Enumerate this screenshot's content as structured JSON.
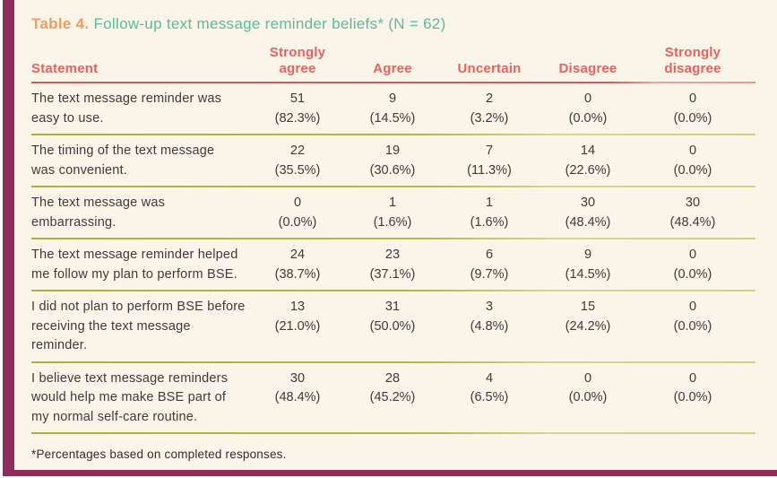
{
  "colors": {
    "accent_bar": "#8d2e5c",
    "panel_background": "#faf4e9",
    "title_label": "#f09e5e",
    "title_text": "#57bd9d",
    "header_text": "#e8615c",
    "header_rule": "#e0564e",
    "row_rule": "#a9b23a",
    "body_text": "#3c3c3c"
  },
  "table": {
    "title_label": "Table 4.",
    "title_text": "Follow-up text message reminder beliefs* (N = 62)",
    "columns": {
      "statement": "Statement",
      "strongly_agree": "Strongly\nagree",
      "agree": "Agree",
      "uncertain": "Uncertain",
      "disagree": "Disagree",
      "strongly_disagree": "Strongly\ndisagree"
    },
    "rows": [
      {
        "statement": "The text message reminder was\neasy to use.",
        "cells": [
          {
            "n": "51",
            "pct": "(82.3%)"
          },
          {
            "n": "9",
            "pct": "(14.5%)"
          },
          {
            "n": "2",
            "pct": "(3.2%)"
          },
          {
            "n": "0",
            "pct": "(0.0%)"
          },
          {
            "n": "0",
            "pct": "(0.0%)"
          }
        ]
      },
      {
        "statement": "The timing of the text message\nwas convenient.",
        "cells": [
          {
            "n": "22",
            "pct": "(35.5%)"
          },
          {
            "n": "19",
            "pct": "(30.6%)"
          },
          {
            "n": "7",
            "pct": "(11.3%)"
          },
          {
            "n": "14",
            "pct": "(22.6%)"
          },
          {
            "n": "0",
            "pct": "(0.0%)"
          }
        ]
      },
      {
        "statement": "The text message was\nembarrassing.",
        "cells": [
          {
            "n": "0",
            "pct": "(0.0%)"
          },
          {
            "n": "1",
            "pct": "(1.6%)"
          },
          {
            "n": "1",
            "pct": "(1.6%)"
          },
          {
            "n": "30",
            "pct": "(48.4%)"
          },
          {
            "n": "30",
            "pct": "(48.4%)"
          }
        ]
      },
      {
        "statement": "The text message reminder helped\nme follow my plan to perform BSE.",
        "cells": [
          {
            "n": "24",
            "pct": "(38.7%)"
          },
          {
            "n": "23",
            "pct": "(37.1%)"
          },
          {
            "n": "6",
            "pct": "(9.7%)"
          },
          {
            "n": "9",
            "pct": "(14.5%)"
          },
          {
            "n": "0",
            "pct": "(0.0%)"
          }
        ]
      },
      {
        "statement": "I did not plan to perform BSE before\nreceiving the text message reminder.",
        "cells": [
          {
            "n": "13",
            "pct": "(21.0%)"
          },
          {
            "n": "31",
            "pct": "(50.0%)"
          },
          {
            "n": "3",
            "pct": "(4.8%)"
          },
          {
            "n": "15",
            "pct": "(24.2%)"
          },
          {
            "n": "0",
            "pct": "(0.0%)"
          }
        ]
      },
      {
        "statement": "I believe text message reminders\nwould help me make BSE part of\nmy normal self-care routine.",
        "cells": [
          {
            "n": "30",
            "pct": "(48.4%)"
          },
          {
            "n": "28",
            "pct": "(45.2%)"
          },
          {
            "n": "4",
            "pct": "(6.5%)"
          },
          {
            "n": "0",
            "pct": "(0.0%)"
          },
          {
            "n": "0",
            "pct": "(0.0%)"
          }
        ]
      }
    ],
    "footnote": "*Percentages based on completed responses."
  }
}
